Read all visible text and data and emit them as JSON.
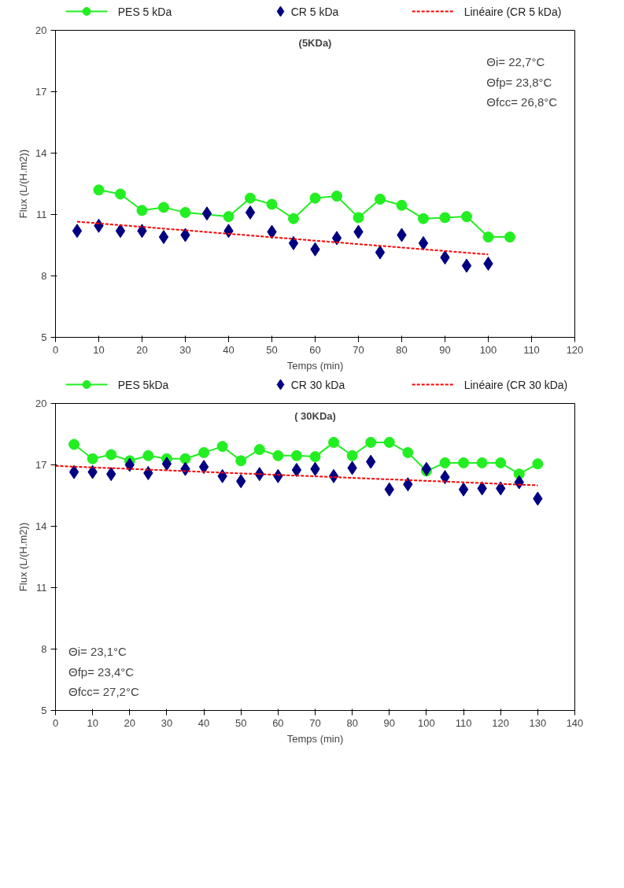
{
  "chart_data": [
    {
      "type": "line",
      "xlabel": "Temps (min)",
      "ylabel": "Flux (L/(H.m2))",
      "xlim": [
        0,
        120
      ],
      "xticks": [
        0,
        10,
        20,
        30,
        40,
        50,
        60,
        70,
        80,
        90,
        100,
        110,
        120
      ],
      "ylim": [
        5,
        20
      ],
      "yticks": [
        5,
        8,
        11,
        14,
        17,
        20
      ],
      "grid": false,
      "legend": "top",
      "annotations": [
        "(5KDa)",
        "Θi= 22,7°C",
        "Θfp= 23,8°C",
        "Θfcc= 26,8°C"
      ],
      "series": [
        {
          "name": "PES 5 kDa",
          "type": "line",
          "marker": "circle",
          "line_style": "solid",
          "color": "#22ee22",
          "x": [
            10,
            15,
            20,
            25,
            30,
            40,
            45,
            50,
            55,
            60,
            65,
            70,
            75,
            80,
            85,
            90,
            95,
            100,
            105
          ],
          "values": [
            12.2,
            12.0,
            11.2,
            11.35,
            11.1,
            10.9,
            11.8,
            11.5,
            10.8,
            11.8,
            11.9,
            10.85,
            11.75,
            11.45,
            10.8,
            10.85,
            10.9,
            9.9,
            9.9
          ]
        },
        {
          "name": "CR 5 kDa",
          "type": "scatter",
          "marker": "diamond",
          "color": "#000080",
          "x": [
            5,
            10,
            15,
            20,
            25,
            30,
            35,
            40,
            45,
            50,
            55,
            60,
            65,
            70,
            75,
            80,
            85,
            90,
            95,
            100
          ],
          "values": [
            10.2,
            10.45,
            10.2,
            10.2,
            9.9,
            10.0,
            11.05,
            10.2,
            11.1,
            10.15,
            9.6,
            9.3,
            9.85,
            10.15,
            9.15,
            10.0,
            9.6,
            8.9,
            8.5,
            8.6
          ]
        },
        {
          "name": "Linéaire (CR 5 kDa)",
          "type": "line",
          "marker": "none",
          "line_style": "dashed",
          "color": "#ff0000",
          "x": [
            5,
            100
          ],
          "values": [
            10.65,
            9.05
          ]
        }
      ]
    },
    {
      "type": "line",
      "xlabel": "Temps (min)",
      "ylabel": "Flux (L/(H.m2))",
      "xlim": [
        0,
        140
      ],
      "xticks": [
        0,
        10,
        20,
        30,
        40,
        50,
        60,
        70,
        80,
        90,
        100,
        110,
        120,
        130,
        140
      ],
      "ylim": [
        5,
        20
      ],
      "yticks": [
        5,
        8,
        11,
        14,
        17,
        20
      ],
      "grid": false,
      "legend": "top",
      "annotations": [
        "( 30KDa)",
        "Θi= 23,1°C",
        "Θfp= 23,4°C",
        "Θfcc= 27,2°C"
      ],
      "series": [
        {
          "name": "PES 5kDa",
          "type": "line",
          "marker": "circle",
          "line_style": "solid",
          "color": "#22ee22",
          "x": [
            5,
            10,
            15,
            20,
            25,
            30,
            35,
            40,
            45,
            50,
            55,
            60,
            65,
            70,
            75,
            80,
            85,
            90,
            95,
            100,
            105,
            110,
            115,
            120,
            125,
            130
          ],
          "values": [
            18.0,
            17.3,
            17.5,
            17.2,
            17.45,
            17.3,
            17.3,
            17.6,
            17.9,
            17.2,
            17.75,
            17.45,
            17.45,
            17.4,
            18.1,
            17.45,
            18.1,
            18.1,
            17.6,
            16.7,
            17.1,
            17.1,
            17.1,
            17.1,
            16.55,
            17.05
          ]
        },
        {
          "name": "CR 30 kDa",
          "type": "scatter",
          "marker": "diamond",
          "color": "#000080",
          "x": [
            5,
            10,
            15,
            20,
            25,
            30,
            35,
            40,
            45,
            50,
            55,
            60,
            65,
            70,
            75,
            80,
            85,
            90,
            95,
            100,
            105,
            110,
            115,
            120,
            125,
            130
          ],
          "values": [
            16.65,
            16.65,
            16.55,
            17.0,
            16.6,
            17.05,
            16.8,
            16.9,
            16.45,
            16.2,
            16.55,
            16.45,
            16.75,
            16.8,
            16.45,
            16.85,
            17.15,
            15.8,
            16.05,
            16.8,
            16.4,
            15.8,
            15.85,
            15.85,
            16.15,
            15.35
          ]
        },
        {
          "name": "Linéaire (CR 30 kDa)",
          "type": "line",
          "marker": "none",
          "line_style": "dashed",
          "color": "#ff0000",
          "x": [
            0,
            130
          ],
          "values": [
            16.95,
            16.0
          ]
        }
      ]
    }
  ]
}
